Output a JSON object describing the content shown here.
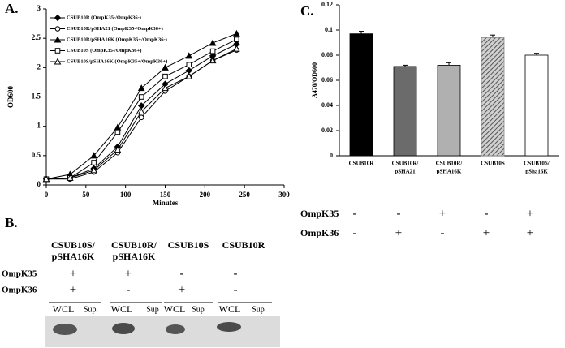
{
  "chart_data": [
    {
      "type": "line",
      "panel_label": "A.",
      "xlabel": "Minutes",
      "ylabel": "OD600",
      "x": [
        0,
        30,
        60,
        90,
        120,
        150,
        180,
        210,
        240
      ],
      "series": [
        {
          "name": "CSUB10R (OmpK35-/OmpK36-)",
          "color": "#000000",
          "marker": "diamond-filled",
          "values": [
            0.1,
            0.12,
            0.28,
            0.65,
            1.35,
            1.72,
            1.95,
            2.2,
            2.4
          ]
        },
        {
          "name": "CSUB10R/pSHA21 (OmpK35-/OmpK36+)",
          "color": "#000000",
          "marker": "circle-open",
          "values": [
            0.1,
            0.1,
            0.22,
            0.55,
            1.15,
            1.6,
            1.85,
            2.12,
            2.3
          ]
        },
        {
          "name": "CSUB10R/pSHA16K (OmpK35+/OmpK36-)",
          "color": "#000000",
          "marker": "triangle-filled",
          "values": [
            0.1,
            0.18,
            0.5,
            0.98,
            1.65,
            2.0,
            2.2,
            2.42,
            2.58
          ]
        },
        {
          "name": "CSUB10S (OmpK35-/OmpK36+)",
          "color": "#000000",
          "marker": "square-open",
          "values": [
            0.1,
            0.12,
            0.38,
            0.9,
            1.5,
            1.85,
            2.05,
            2.28,
            2.48
          ]
        },
        {
          "name": "CSUB10S/pSHA16K (OmpK35+/OmpK36+)",
          "color": "#000000",
          "marker": "triangle-open",
          "values": [
            0.1,
            0.12,
            0.25,
            0.6,
            1.25,
            1.65,
            1.85,
            2.12,
            2.32
          ]
        }
      ],
      "xlim": [
        0,
        300
      ],
      "xticks": [
        0,
        50,
        100,
        150,
        200,
        250,
        300
      ],
      "ylim": [
        0,
        3
      ],
      "yticks": [
        0,
        0.5,
        1,
        1.5,
        2,
        2.5,
        3
      ]
    },
    {
      "type": "bar",
      "panel_label": "C.",
      "ylabel": "A470/OD600",
      "categories": [
        [
          "CSUB10R"
        ],
        [
          "CSUB10R/",
          "pSHA21"
        ],
        [
          "CSUB10R/",
          "pSHA16K"
        ],
        [
          "CSUB10S"
        ],
        [
          "CSUB10S/",
          "pSha16K"
        ]
      ],
      "values": [
        0.097,
        0.071,
        0.072,
        0.094,
        0.08
      ],
      "errors": [
        0.002,
        0.001,
        0.002,
        0.002,
        0.0015
      ],
      "colors": [
        "#000000",
        "#6b6b6b",
        "#b0b0b0",
        "#8a8a8a",
        "#ffffff"
      ],
      "hatched": [
        false,
        false,
        false,
        true,
        false
      ],
      "ylim": [
        0,
        0.12
      ],
      "yticks": [
        0,
        0.02,
        0.04,
        0.06,
        0.08,
        0.1,
        0.12
      ],
      "genotype": [
        {
          "label": "OmpK35",
          "values": [
            "-",
            "-",
            "+",
            "-",
            "+"
          ]
        },
        {
          "label": "OmpK36",
          "values": [
            "-",
            "+",
            "-",
            "+",
            "+"
          ]
        }
      ]
    }
  ],
  "panel_b": {
    "panel_label": "B.",
    "columns": [
      [
        "CSUB10S/",
        "pSHA16K"
      ],
      [
        "CSUB10R/",
        "pSHA16K"
      ],
      [
        "CSUB10S"
      ],
      [
        "CSUB10R"
      ]
    ],
    "rows": [
      {
        "label": "OmpK35",
        "values": [
          "+",
          "+",
          "-",
          "-"
        ]
      },
      {
        "label": "OmpK36",
        "values": [
          "+",
          "-",
          "+",
          "-"
        ]
      }
    ],
    "lanes": [
      "WCL",
      "Sup.",
      "WCL",
      "Sup",
      "WCL",
      "Sup",
      "WCL",
      "Sup"
    ]
  }
}
